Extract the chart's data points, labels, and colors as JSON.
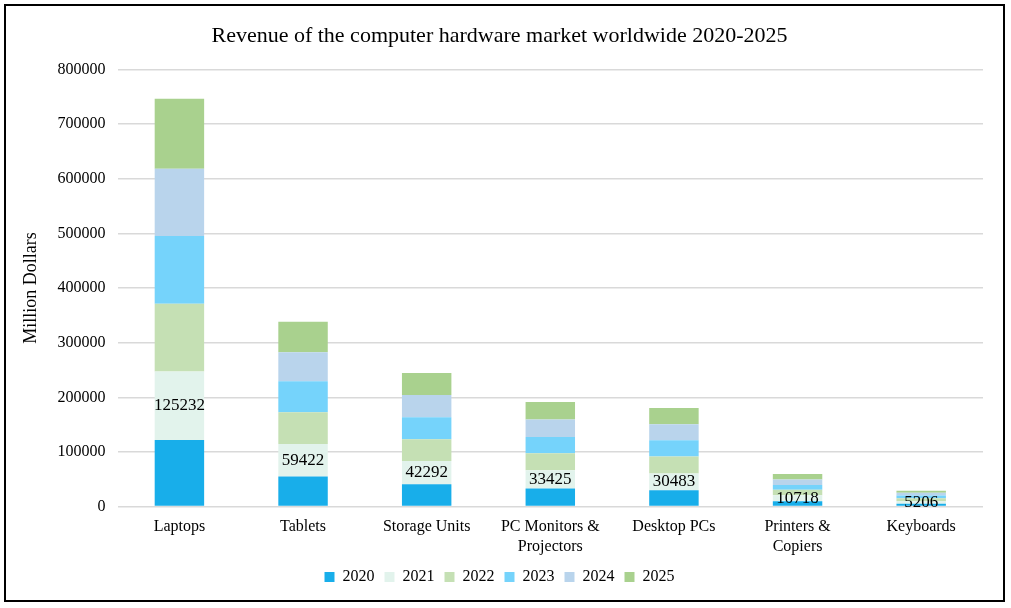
{
  "chart_data": {
    "type": "bar",
    "title": "Revenue of the computer hardware market worldwide 2020-2025",
    "ylabel": "Million Dollars",
    "categories": [
      "Laptops",
      "Tablets",
      "Storage Units",
      "PC Monitors & Projectors",
      "Desktop PCs",
      "Printers & Copiers",
      "Keyboards"
    ],
    "stacked": true,
    "ylim": [
      0,
      800000
    ],
    "yticks": [
      0,
      100000,
      200000,
      300000,
      400000,
      500000,
      600000,
      700000,
      800000
    ],
    "grid": "y",
    "legend": "bottom",
    "series": [
      {
        "name": "2020",
        "color": "#18aeea",
        "values": [
          122000,
          55000,
          41000,
          33000,
          30000,
          10000,
          5000
        ]
      },
      {
        "name": "2021",
        "color": "#e2f3ec",
        "values": [
          125232,
          59422,
          42292,
          33425,
          30483,
          10718,
          5206
        ],
        "value_labels": [
          "125232",
          "59422",
          "42292",
          "33425",
          "30483",
          "10718",
          "5206"
        ]
      },
      {
        "name": "2022",
        "color": "#c5e0b4",
        "values": [
          124000,
          58000,
          40000,
          31000,
          31000,
          10000,
          5000
        ]
      },
      {
        "name": "2023",
        "color": "#75d3fb",
        "values": [
          124000,
          57000,
          40000,
          30000,
          30000,
          9000,
          5000
        ]
      },
      {
        "name": "2024",
        "color": "#b9d4ec",
        "values": [
          123000,
          53000,
          41000,
          32000,
          29000,
          10000,
          5000
        ]
      },
      {
        "name": "2025",
        "color": "#a9d18e",
        "values": [
          128000,
          56000,
          40000,
          32000,
          30000,
          10000,
          4000
        ]
      }
    ]
  }
}
